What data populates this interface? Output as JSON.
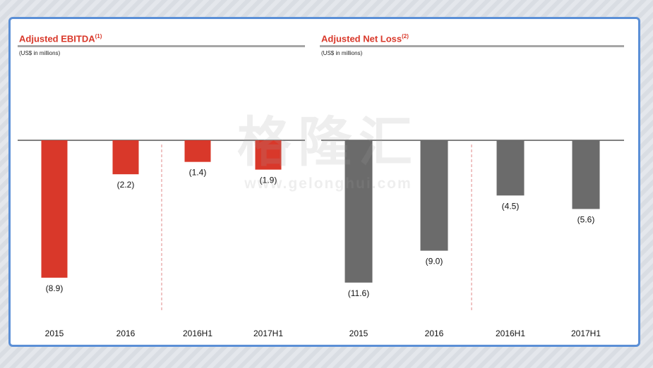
{
  "watermark": {
    "glyphs": "格隆汇",
    "url": "www.gelonghui.com"
  },
  "chart_data": [
    {
      "type": "bar",
      "title": "Adjusted EBITDA",
      "title_superscript": "(1)",
      "unit_label": "(US$ in millions)",
      "categories": [
        "2015",
        "2016",
        "2016H1",
        "2017H1"
      ],
      "values": [
        -8.9,
        -2.2,
        -1.4,
        -1.9
      ],
      "value_labels": [
        "(8.9)",
        "(2.2)",
        "(1.4)",
        "(1.9)"
      ],
      "color": "#d9382a",
      "divider_between": [
        1,
        2
      ]
    },
    {
      "type": "bar",
      "title": "Adjusted Net Loss",
      "title_superscript": "(2)",
      "unit_label": "(US$ in millions)",
      "categories": [
        "2015",
        "2016",
        "2016H1",
        "2017H1"
      ],
      "values": [
        -11.6,
        -9.0,
        -4.5,
        -5.6
      ],
      "value_labels": [
        "(11.6)",
        "(9.0)",
        "(4.5)",
        "(5.6)"
      ],
      "color": "#6b6b6b",
      "divider_between": [
        1,
        2
      ]
    }
  ]
}
